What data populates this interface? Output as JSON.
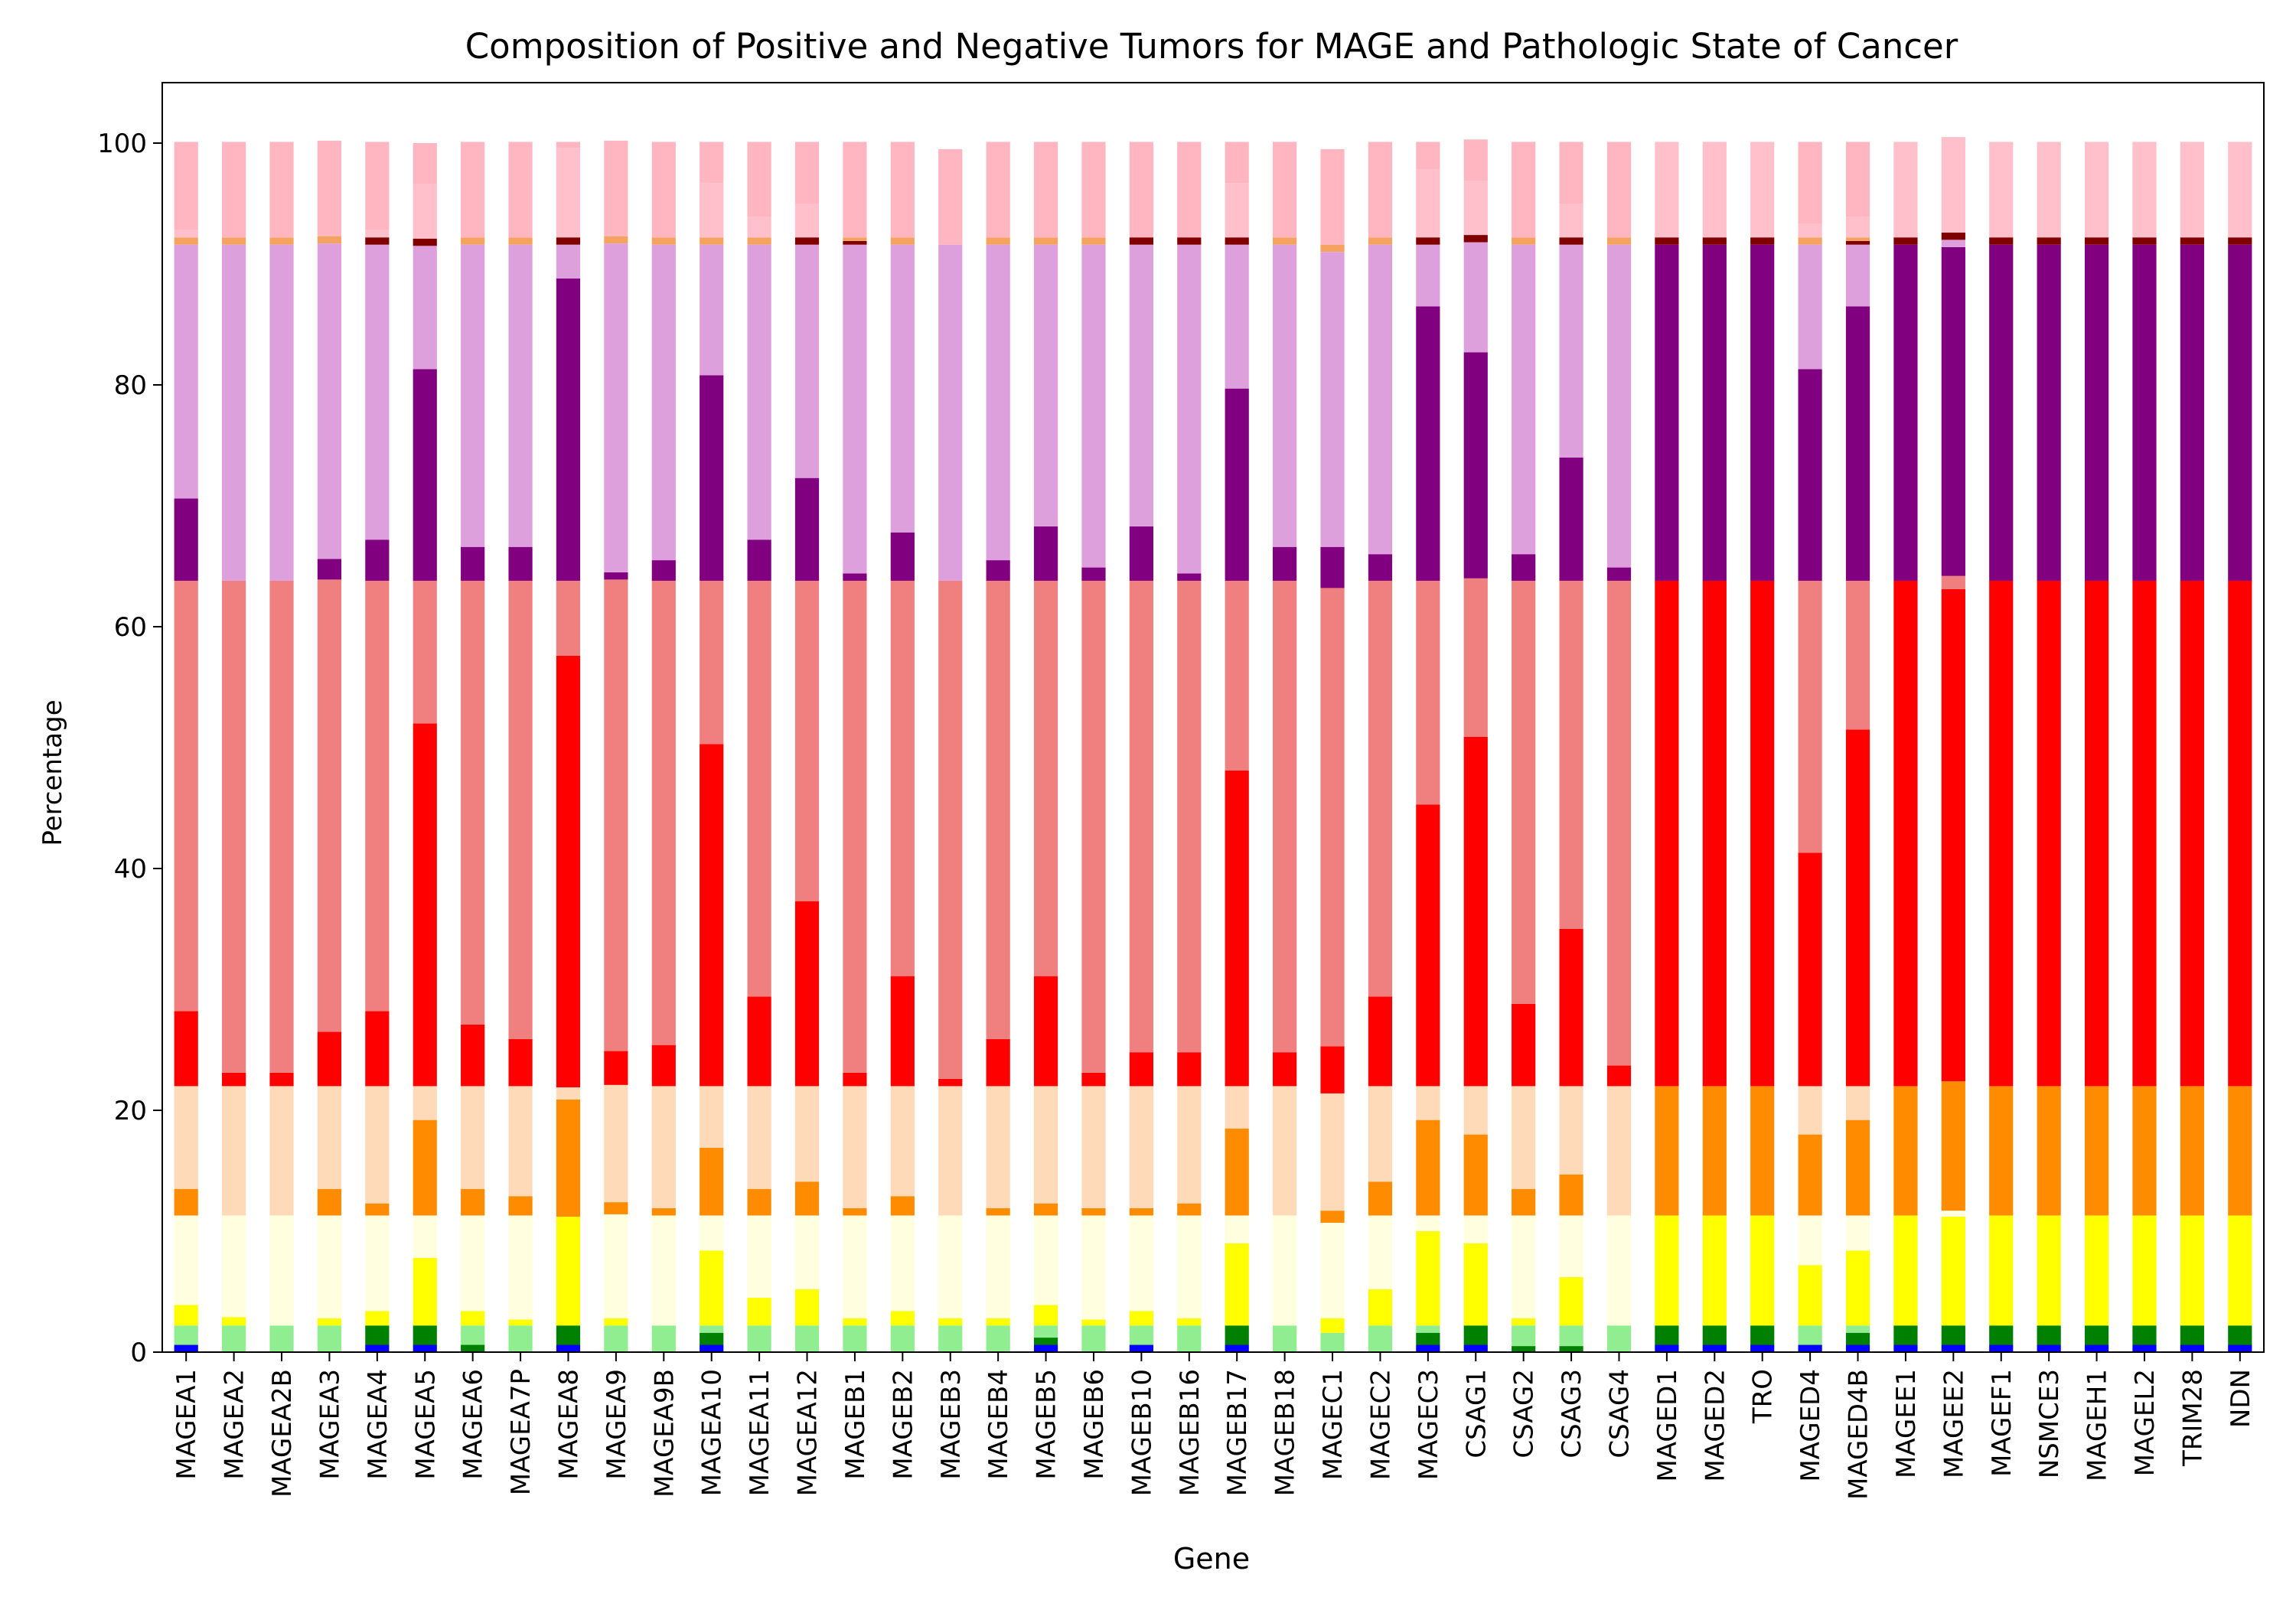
{
  "chart_data": {
    "type": "bar",
    "stacked": true,
    "title": "Composition of Positive and Negative Tumors for MAGE and Pathologic State of Cancer",
    "xlabel": "Gene",
    "ylabel": "Percentage",
    "ylim": [
      0,
      105
    ],
    "yticks": [
      0,
      20,
      40,
      60,
      80,
      100
    ],
    "grid": false,
    "legend": "none",
    "categories": [
      "MAGEA1",
      "MAGEA2",
      "MAGEA2B",
      "MAGEA3",
      "MAGEA4",
      "MAGEA5",
      "MAGEA6",
      "MAGEA7P",
      "MAGEA8",
      "MAGEA9",
      "MAGEA9B",
      "MAGEA10",
      "MAGEA11",
      "MAGEA12",
      "MAGEB1",
      "MAGEB2",
      "MAGEB3",
      "MAGEB4",
      "MAGEB5",
      "MAGEB6",
      "MAGEB10",
      "MAGEB16",
      "MAGEB17",
      "MAGEB18",
      "MAGEC1",
      "MAGEC2",
      "MAGEC3",
      "CSAG1",
      "CSAG2",
      "CSAG3",
      "CSAG4",
      "MAGED1",
      "MAGED2",
      "TRO",
      "MAGED4",
      "MAGED4B",
      "MAGEE1",
      "MAGEE2",
      "MAGEF1",
      "NSMCE3",
      "MAGEH1",
      "MAGEL2",
      "TRIM28",
      "NDN"
    ],
    "series": [
      {
        "color": "#0000ff",
        "values": [
          0.6,
          0,
          0,
          0,
          0.6,
          0.6,
          0,
          0,
          0.6,
          0,
          0,
          0.6,
          0,
          0,
          0,
          0,
          0,
          0,
          0.6,
          0,
          0.6,
          0,
          0.6,
          0,
          0,
          0,
          0.6,
          0.6,
          0,
          0,
          0,
          0.6,
          0.6,
          0.6,
          0.6,
          0.6,
          0.6,
          0.6,
          0.6,
          0.6,
          0.6,
          0.6,
          0.6,
          0.6
        ]
      },
      {
        "color": "#add8e6",
        "values": [
          0,
          0,
          0,
          0,
          0,
          0,
          0,
          0,
          0,
          0,
          0,
          0,
          0,
          0,
          0,
          0,
          0,
          0,
          0,
          0,
          0,
          0,
          0,
          0,
          0,
          0,
          0,
          0,
          0,
          0,
          0,
          0,
          0,
          0,
          0,
          0,
          0,
          0,
          0,
          0,
          0,
          0,
          0,
          0
        ]
      },
      {
        "color": "#008000",
        "values": [
          0,
          0,
          0,
          0,
          1.6,
          1.6,
          0.6,
          0,
          1.6,
          0,
          0,
          1,
          0,
          0,
          0,
          0,
          0,
          0,
          0.6,
          0,
          0,
          0,
          1.6,
          0,
          0,
          0,
          1,
          1.6,
          0.5,
          0.5,
          0,
          1.6,
          1.6,
          1.6,
          0,
          1,
          1.6,
          1.6,
          1.6,
          1.6,
          1.6,
          1.6,
          1.6,
          1.6
        ]
      },
      {
        "color": "#90ee90",
        "values": [
          1.6,
          2.2,
          2.2,
          2.2,
          0,
          0,
          1.6,
          2.2,
          0,
          2.2,
          2.2,
          0.6,
          2.2,
          2.2,
          2.2,
          2.2,
          2.2,
          2.2,
          1,
          2.2,
          1.6,
          2.2,
          0,
          2.2,
          1.6,
          2.2,
          0.6,
          0,
          1.7,
          1.7,
          2.2,
          0,
          0,
          0,
          1.6,
          0.6,
          0,
          0,
          0,
          0,
          0,
          0,
          0,
          0
        ]
      },
      {
        "color": "#ffff00",
        "values": [
          1.7,
          0.7,
          0,
          0.6,
          1.2,
          5.6,
          1.2,
          0.5,
          9,
          0.6,
          0,
          6.2,
          2.3,
          3,
          0.6,
          1.2,
          0.6,
          0.6,
          1.7,
          0.5,
          1.2,
          0.6,
          6.8,
          0,
          1.2,
          3,
          7.8,
          6.8,
          0.6,
          4,
          0,
          9.1,
          9.1,
          9.1,
          5,
          6.2,
          9.1,
          9,
          9.1,
          9.1,
          9.1,
          9.1,
          9.1,
          9.1
        ]
      },
      {
        "color": "#ffffe0",
        "values": [
          7.4,
          8.4,
          9.1,
          8.5,
          7.9,
          3.5,
          7.9,
          8.6,
          0,
          8.6,
          9.1,
          2.9,
          6.8,
          6.1,
          8.5,
          7.9,
          8.5,
          8.5,
          7.4,
          8.6,
          7.9,
          8.5,
          2.3,
          9.1,
          7.9,
          6.1,
          1.3,
          2.3,
          8.5,
          5.1,
          9.1,
          0,
          0,
          0,
          4.1,
          2.9,
          0,
          0.5,
          0,
          0,
          0,
          0,
          0,
          0
        ]
      },
      {
        "color": "#ff8c00",
        "values": [
          2.2,
          0,
          0,
          2.2,
          1,
          7.9,
          2.2,
          1.6,
          9.7,
          1,
          0.6,
          5.6,
          2.2,
          2.8,
          0.6,
          1.6,
          0,
          0.6,
          1,
          0.6,
          0.6,
          1,
          7.2,
          0,
          1,
          2.8,
          7.9,
          6.7,
          2.2,
          3.4,
          0,
          10.7,
          10.7,
          10.7,
          6.7,
          7.9,
          10.7,
          10.7,
          10.7,
          10.7,
          10.7,
          10.7,
          10.7,
          10.7
        ]
      },
      {
        "color": "#ffdab9",
        "values": [
          8.5,
          10.7,
          10.7,
          8.5,
          9.7,
          2.8,
          8.5,
          9.1,
          1,
          9.7,
          10.1,
          5.1,
          8.5,
          7.9,
          10.1,
          9.1,
          10.7,
          10.1,
          9.7,
          10.1,
          10.1,
          9.7,
          3.5,
          10.7,
          9.7,
          7.9,
          2.8,
          4,
          8.5,
          7.3,
          10.7,
          0,
          0,
          0,
          4,
          2.8,
          0,
          0,
          0,
          0,
          0,
          0,
          0,
          0
        ]
      },
      {
        "color": "#ff0000",
        "values": [
          6.2,
          1.1,
          1.1,
          4.5,
          6.2,
          30,
          5.1,
          3.9,
          35.7,
          2.8,
          3.4,
          28.3,
          7.4,
          15.3,
          1.1,
          9.1,
          0.6,
          3.9,
          9.1,
          1.1,
          2.8,
          2.8,
          26.1,
          2.8,
          3.9,
          7.4,
          23.3,
          28.9,
          6.8,
          13,
          1.7,
          41.8,
          41.8,
          41.8,
          19.3,
          29.5,
          41.8,
          40.7,
          41.8,
          41.8,
          41.8,
          41.8,
          41.8,
          41.8
        ]
      },
      {
        "color": "#f08080",
        "values": [
          35.6,
          40.7,
          40.7,
          37.4,
          35.6,
          11.8,
          36.7,
          37.9,
          6.2,
          39,
          38.4,
          13.5,
          34.4,
          26.5,
          40.7,
          32.7,
          41.2,
          37.9,
          32.7,
          40.7,
          39,
          39,
          15.7,
          39,
          37.9,
          34.4,
          18.5,
          13.1,
          35,
          28.8,
          40.1,
          0,
          0,
          0,
          22.5,
          12.3,
          0,
          1.1,
          0,
          0,
          0,
          0,
          0,
          0
        ]
      },
      {
        "color": "#800080",
        "values": [
          6.8,
          0,
          0,
          1.7,
          3.4,
          17.5,
          2.8,
          2.8,
          25,
          0.6,
          1.7,
          17,
          3.4,
          8.5,
          0.6,
          4,
          0,
          1.7,
          4.5,
          1.1,
          4.5,
          0.6,
          15.9,
          2.8,
          3.4,
          2.2,
          22.7,
          18.7,
          2.2,
          10.2,
          1.1,
          27.8,
          27.8,
          27.8,
          17.5,
          22.7,
          27.8,
          27.2,
          27.8,
          27.8,
          27.8,
          27.8,
          27.8,
          27.8
        ]
      },
      {
        "color": "#dda0dd",
        "values": [
          21,
          27.8,
          27.8,
          26.1,
          24.4,
          10.2,
          25,
          25,
          2.8,
          27.2,
          26.1,
          10.8,
          24.4,
          19.3,
          27.2,
          23.8,
          27.8,
          26.1,
          23.3,
          26.7,
          23.3,
          27.2,
          11.9,
          25,
          24.4,
          25.6,
          5.1,
          9.1,
          25.6,
          17.6,
          26.7,
          0,
          0,
          0,
          10.3,
          5.1,
          0,
          0.6,
          0,
          0,
          0,
          0,
          0,
          0
        ]
      },
      {
        "color": "#800000",
        "values": [
          0,
          0,
          0,
          0,
          0.6,
          0.6,
          0,
          0,
          0.6,
          0,
          0,
          0,
          0,
          0.6,
          0.3,
          0,
          0,
          0,
          0,
          0,
          0.6,
          0.6,
          0.6,
          0,
          0,
          0,
          0.6,
          0.6,
          0,
          0.6,
          0,
          0.6,
          0.6,
          0.6,
          0,
          0.3,
          0.6,
          0.6,
          0.6,
          0.6,
          0.6,
          0.6,
          0.6,
          0.6
        ]
      },
      {
        "color": "#f4a460",
        "values": [
          0.6,
          0.6,
          0.6,
          0.6,
          0,
          0,
          0.6,
          0.6,
          0,
          0.6,
          0.6,
          0.6,
          0.6,
          0,
          0.3,
          0.6,
          0,
          0.6,
          0.6,
          0.6,
          0,
          0,
          0,
          0.6,
          0.6,
          0.6,
          0,
          0,
          0.6,
          0,
          0.6,
          0,
          0,
          0,
          0.6,
          0.3,
          0,
          0,
          0,
          0,
          0,
          0,
          0,
          0
        ]
      },
      {
        "color": "#ffc0cb",
        "values": [
          0.6,
          0,
          0,
          0,
          0.6,
          4.5,
          0,
          0,
          7.4,
          0,
          0,
          4.5,
          1.7,
          2.8,
          0,
          0,
          0,
          0,
          0,
          0,
          0,
          0,
          4.5,
          0,
          0,
          0,
          5.6,
          4.5,
          0,
          2.8,
          0,
          7.9,
          7.9,
          7.9,
          1.1,
          1.7,
          7.9,
          7.9,
          7.9,
          7.9,
          7.9,
          7.9,
          7.9,
          7.9
        ]
      },
      {
        "color": "#ffb6c1",
        "values": [
          7.3,
          7.9,
          7.9,
          7.9,
          7.3,
          3.4,
          7.9,
          7.9,
          0.5,
          7.9,
          7.9,
          3.4,
          6.2,
          5.1,
          7.9,
          7.9,
          7.9,
          7.9,
          7.9,
          7.9,
          7.9,
          7.9,
          3.4,
          7.9,
          7.9,
          7.9,
          2.3,
          3.4,
          7.9,
          5.1,
          7.9,
          0,
          0,
          0,
          6.8,
          6.2,
          0,
          0,
          0,
          0,
          0,
          0,
          0,
          0
        ]
      }
    ]
  }
}
